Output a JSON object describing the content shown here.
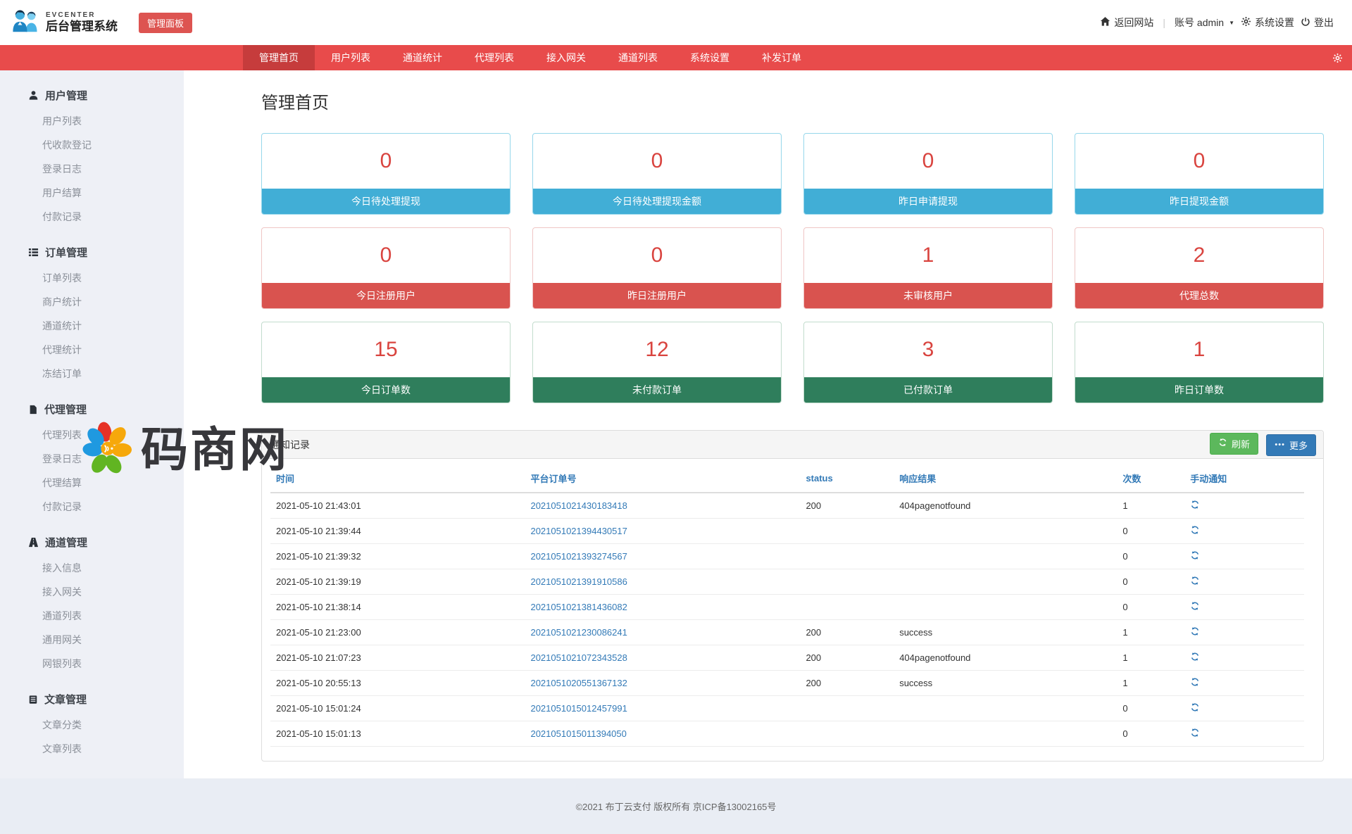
{
  "header": {
    "brand_small": "EVCENTER",
    "brand_title": "后台管理系统",
    "badge": "管理面板",
    "back_to_site": "返回网站",
    "account_label": "账号 admin",
    "settings": "系统设置",
    "logout": "登出"
  },
  "nav": {
    "tabs": [
      {
        "label": "管理首页",
        "active": true
      },
      {
        "label": "用户列表",
        "active": false
      },
      {
        "label": "通道统计",
        "active": false
      },
      {
        "label": "代理列表",
        "active": false
      },
      {
        "label": "接入网关",
        "active": false
      },
      {
        "label": "通道列表",
        "active": false
      },
      {
        "label": "系统设置",
        "active": false
      },
      {
        "label": "补发订单",
        "active": false
      }
    ]
  },
  "sidebar": {
    "sections": [
      {
        "icon": "user-icon",
        "title": "用户管理",
        "items": [
          "用户列表",
          "代收款登记",
          "登录日志",
          "用户结算",
          "付款记录"
        ]
      },
      {
        "icon": "list-icon",
        "title": "订单管理",
        "items": [
          "订单列表",
          "商户统计",
          "通道统计",
          "代理统计",
          "冻结订单"
        ]
      },
      {
        "icon": "file-icon",
        "title": "代理管理",
        "items": [
          "代理列表",
          "登录日志",
          "代理结算",
          "付款记录"
        ]
      },
      {
        "icon": "road-icon",
        "title": "通道管理",
        "items": [
          "接入信息",
          "接入网关",
          "通道列表",
          "通用网关",
          "网银列表"
        ]
      },
      {
        "icon": "article-icon",
        "title": "文章管理",
        "items": [
          "文章分类",
          "文章列表"
        ]
      }
    ]
  },
  "main": {
    "page_title": "管理首页",
    "stat_rows": [
      {
        "theme": "blue",
        "bar_color": "#41aed6",
        "border_color": "#96d7eb",
        "cards": [
          {
            "value": "0",
            "label": "今日待处理提现"
          },
          {
            "value": "0",
            "label": "今日待处理提现金额"
          },
          {
            "value": "0",
            "label": "昨日申请提现"
          },
          {
            "value": "0",
            "label": "昨日提现金额"
          }
        ]
      },
      {
        "theme": "red",
        "bar_color": "#d9534f",
        "border_color": "#efc6c5",
        "cards": [
          {
            "value": "0",
            "label": "今日注册用户"
          },
          {
            "value": "0",
            "label": "昨日注册用户"
          },
          {
            "value": "1",
            "label": "未审核用户"
          },
          {
            "value": "2",
            "label": "代理总数"
          }
        ]
      },
      {
        "theme": "green",
        "bar_color": "#2f7e5c",
        "border_color": "#c2dccd",
        "cards": [
          {
            "value": "15",
            "label": "今日订单数"
          },
          {
            "value": "12",
            "label": "未付款订单"
          },
          {
            "value": "3",
            "label": "已付款订单"
          },
          {
            "value": "1",
            "label": "昨日订单数"
          }
        ]
      }
    ]
  },
  "panel": {
    "title": "通知记录",
    "refresh_label": "刷新",
    "more_label": "更多",
    "table": {
      "columns": [
        "时间",
        "平台订单号",
        "status",
        "响应结果",
        "次数",
        "手动通知"
      ],
      "rows": [
        {
          "time": "2021-05-10 21:43:01",
          "order_no": "2021051021430183418",
          "status": "200",
          "result": "404pagenotfound",
          "count": "1"
        },
        {
          "time": "2021-05-10 21:39:44",
          "order_no": "2021051021394430517",
          "status": "",
          "result": "",
          "count": "0"
        },
        {
          "time": "2021-05-10 21:39:32",
          "order_no": "2021051021393274567",
          "status": "",
          "result": "",
          "count": "0"
        },
        {
          "time": "2021-05-10 21:39:19",
          "order_no": "2021051021391910586",
          "status": "",
          "result": "",
          "count": "0"
        },
        {
          "time": "2021-05-10 21:38:14",
          "order_no": "2021051021381436082",
          "status": "",
          "result": "",
          "count": "0"
        },
        {
          "time": "2021-05-10 21:23:00",
          "order_no": "2021051021230086241",
          "status": "200",
          "result": "success",
          "count": "1"
        },
        {
          "time": "2021-05-10 21:07:23",
          "order_no": "2021051021072343528",
          "status": "200",
          "result": "404pagenotfound",
          "count": "1"
        },
        {
          "time": "2021-05-10 20:55:13",
          "order_no": "2021051020551367132",
          "status": "200",
          "result": "success",
          "count": "1"
        },
        {
          "time": "2021-05-10 15:01:24",
          "order_no": "2021051015012457991",
          "status": "",
          "result": "",
          "count": "0"
        },
        {
          "time": "2021-05-10 15:01:13",
          "order_no": "2021051015011394050",
          "status": "",
          "result": "",
          "count": "0"
        }
      ]
    }
  },
  "watermark": {
    "text": "码商网"
  },
  "footer": {
    "copyright": "©2021 布丁云支付 版权所有  京ICP备13002165号"
  },
  "colors": {
    "nav_red": "#e84b4b",
    "nav_active_red": "#c63c3c",
    "badge_red": "#dd5451",
    "stat_number_red": "#d9443f",
    "card_bar_blue": "#41aed6",
    "card_bar_red": "#d9534f",
    "card_bar_green": "#2f7e5c",
    "link_blue": "#337ab7",
    "button_green": "#5cb85c",
    "button_blue": "#337ab7"
  }
}
